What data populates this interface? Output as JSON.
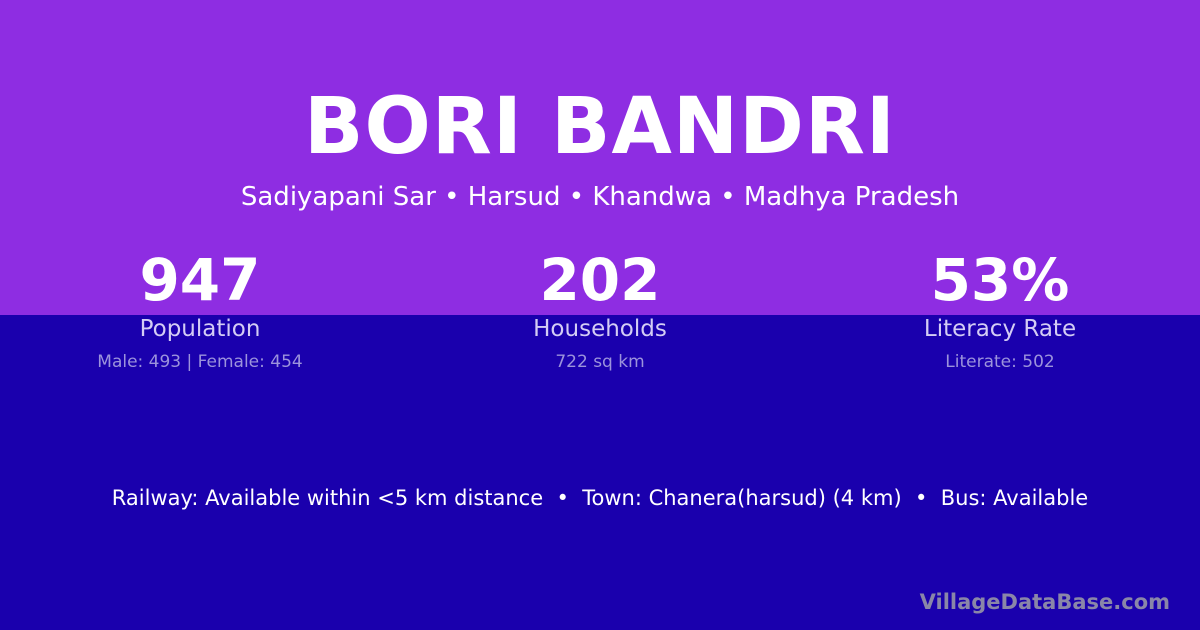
{
  "colors": {
    "top_bg": "#8e2de2",
    "bottom_bg": "#1a00ad"
  },
  "title": "BORI BANDRI",
  "subtitle": "Sadiyapani Sar • Harsud • Khandwa • Madhya Pradesh",
  "stats": [
    {
      "value": "947",
      "label": "Population",
      "detail": "Male: 493 | Female: 454"
    },
    {
      "value": "202",
      "label": "Households",
      "detail": "722 sq km"
    },
    {
      "value": "53%",
      "label": "Literacy Rate",
      "detail": "Literate: 502"
    }
  ],
  "info": "Railway: Available within <5 km distance  •  Town: Chanera(harsud) (4 km)  •  Bus: Available",
  "brand": "VillageDataBase.com"
}
